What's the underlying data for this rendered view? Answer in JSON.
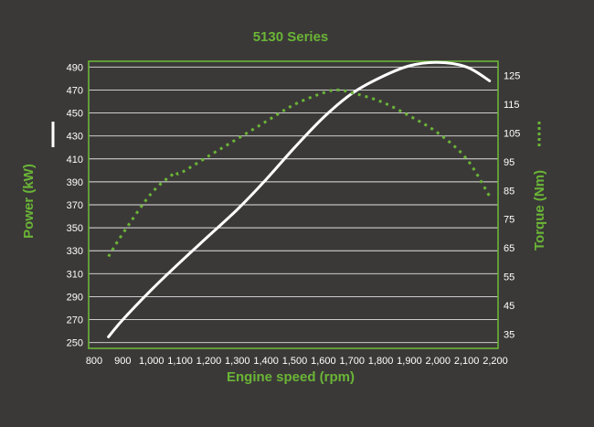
{
  "colors": {
    "background": "#3b3938",
    "accent": "#6ab536",
    "power_line": "#ffffff",
    "torque_line": "#6ab536",
    "grid": "#ffffff",
    "tick_text": "#ffffff"
  },
  "chart_data": {
    "type": "line",
    "title": "5130 Series",
    "xlabel": "Engine speed (rpm)",
    "ylabel": "Power (kW)",
    "y2label": "Torque (Nm)",
    "xlim": [
      800,
      2200
    ],
    "ylim": [
      245,
      495
    ],
    "y2lim": [
      30,
      130
    ],
    "x_ticks": [
      "800",
      "900",
      "1,000",
      "1,100",
      "1,200",
      "1,300",
      "1,400",
      "1,500",
      "1,600",
      "1,700",
      "1,800",
      "1,900",
      "2,000",
      "2,100",
      "2,200"
    ],
    "x_tick_values": [
      800,
      900,
      1000,
      1100,
      1200,
      1300,
      1400,
      1500,
      1600,
      1700,
      1800,
      1900,
      2000,
      2100,
      2200
    ],
    "y_ticks": [
      "250",
      "270",
      "290",
      "310",
      "330",
      "350",
      "370",
      "390",
      "410",
      "430",
      "450",
      "470",
      "490"
    ],
    "y_tick_values": [
      250,
      270,
      290,
      310,
      330,
      350,
      370,
      390,
      410,
      430,
      450,
      470,
      490
    ],
    "y2_ticks": [
      "35",
      "45",
      "55",
      "65",
      "75",
      "85",
      "95",
      "105",
      "115",
      "125"
    ],
    "y2_tick_values": [
      35,
      45,
      55,
      65,
      75,
      85,
      95,
      105,
      115,
      125
    ],
    "gridlines_y": [
      250,
      270,
      290,
      310,
      330,
      350,
      370,
      390,
      410,
      430,
      450,
      470,
      490
    ],
    "grid": true,
    "legend": "none",
    "series": [
      {
        "axis": "left",
        "style": "solid",
        "color": "#ffffff",
        "points": [
          [
            850,
            255
          ],
          [
            900,
            270
          ],
          [
            1000,
            296
          ],
          [
            1100,
            320
          ],
          [
            1200,
            343
          ],
          [
            1300,
            366
          ],
          [
            1400,
            392
          ],
          [
            1500,
            420
          ],
          [
            1600,
            446
          ],
          [
            1700,
            467
          ],
          [
            1800,
            481
          ],
          [
            1900,
            491
          ],
          [
            2000,
            494
          ],
          [
            2100,
            490
          ],
          [
            2180,
            478
          ]
        ]
      },
      {
        "axis": "right",
        "style": "dotted",
        "color": "#6ab536",
        "points": [
          [
            850,
            62
          ],
          [
            900,
            70
          ],
          [
            1000,
            84
          ],
          [
            1080,
            91
          ],
          [
            1100,
            91
          ],
          [
            1200,
            97
          ],
          [
            1300,
            103
          ],
          [
            1400,
            109
          ],
          [
            1500,
            115
          ],
          [
            1600,
            119
          ],
          [
            1650,
            120
          ],
          [
            1700,
            119
          ],
          [
            1800,
            116
          ],
          [
            1900,
            111
          ],
          [
            2000,
            105
          ],
          [
            2100,
            96
          ],
          [
            2180,
            83
          ]
        ]
      }
    ]
  }
}
